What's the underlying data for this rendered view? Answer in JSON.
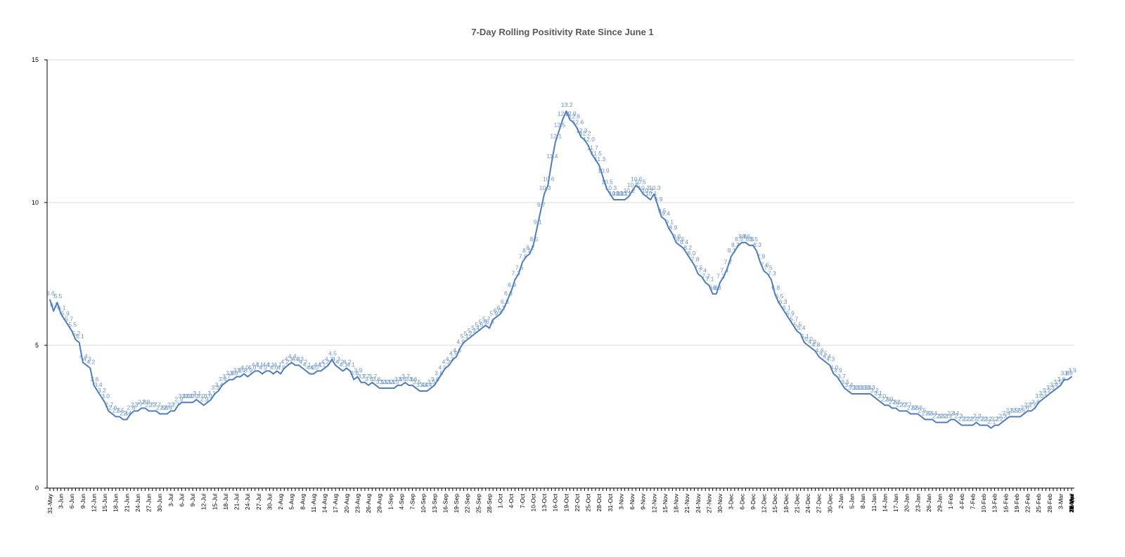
{
  "chart_data": {
    "type": "line",
    "title": "7-Day Rolling Positivity Rate Since June 1",
    "xlabel": "",
    "ylabel": "",
    "ylim": [
      0,
      15
    ],
    "y_ticks": [
      "0",
      "5",
      "10",
      "15"
    ],
    "grid": true,
    "legend": "none",
    "x_tick_labels": [
      "31-May",
      "3-Jun",
      "6-Jun",
      "9-Jun",
      "12-Jun",
      "15-Jun",
      "18-Jun",
      "21-Jun",
      "24-Jun",
      "27-Jun",
      "30-Jun",
      "3-Jul",
      "6-Jul",
      "9-Jul",
      "12-Jul",
      "15-Jul",
      "18-Jul",
      "21-Jul",
      "24-Jul",
      "27-Jul",
      "30-Jul",
      "2-Aug",
      "5-Aug",
      "8-Aug",
      "11-Aug",
      "14-Aug",
      "17-Aug",
      "20-Aug",
      "23-Aug",
      "26-Aug",
      "29-Aug",
      "1-Sep",
      "4-Sep",
      "7-Sep",
      "10-Sep",
      "13-Sep",
      "16-Sep",
      "19-Sep",
      "22-Sep",
      "25-Sep",
      "28-Sep",
      "1-Oct",
      "4-Oct",
      "7-Oct",
      "10-Oct",
      "13-Oct",
      "16-Oct",
      "19-Oct",
      "22-Oct",
      "25-Oct",
      "28-Oct",
      "31-Oct",
      "3-Nov",
      "6-Nov",
      "9-Nov",
      "12-Nov",
      "15-Nov",
      "18-Nov",
      "21-Nov",
      "24-Nov",
      "27-Nov",
      "30-Nov",
      "3-Dec",
      "6-Dec",
      "9-Dec",
      "12-Dec",
      "15-Dec",
      "18-Dec",
      "21-Dec",
      "24-Dec",
      "27-Dec",
      "30-Dec",
      "2-Jan",
      "5-Jan",
      "8-Jan",
      "11-Jan",
      "14-Jan",
      "17-Jan",
      "20-Jan",
      "23-Jan",
      "26-Jan",
      "29-Jan",
      "1-Feb",
      "4-Feb",
      "7-Feb",
      "10-Feb",
      "13-Feb",
      "16-Feb",
      "19-Feb",
      "22-Feb",
      "25-Feb",
      "28-Feb",
      "3-Mar",
      "6-Mar",
      "9-Mar",
      "12-Mar",
      "15-Mar",
      "18-Mar",
      "21-Mar",
      "24-Mar",
      "27-Mar",
      "30-Mar",
      "2-Apr",
      "5-April"
    ],
    "series_color": "#4f7dbd",
    "series": [
      {
        "values": [
          6.6,
          6.2,
          6.5,
          6.1,
          5.9,
          5.7,
          5.5,
          5.2,
          5.1,
          4.4,
          4.3,
          4.2,
          3.6,
          3.4,
          3.2,
          3.0,
          2.7,
          2.6,
          2.5,
          2.5,
          2.4,
          2.4,
          2.6,
          2.7,
          2.7,
          2.8,
          2.8,
          2.7,
          2.7,
          2.7,
          2.6,
          2.6,
          2.6,
          2.7,
          2.7,
          2.9,
          3.0,
          3.0,
          3.0,
          3.0,
          3.1,
          3.0,
          2.9,
          3.0,
          3.1,
          3.3,
          3.4,
          3.6,
          3.7,
          3.8,
          3.8,
          3.9,
          3.9,
          4.0,
          3.9,
          4.0,
          4.1,
          4.1,
          4.0,
          4.1,
          4.1,
          4.0,
          4.1,
          4.0,
          4.2,
          4.3,
          4.4,
          4.3,
          4.3,
          4.2,
          4.1,
          4.0,
          4.0,
          4.1,
          4.1,
          4.2,
          4.3,
          4.5,
          4.3,
          4.2,
          4.1,
          4.2,
          4.1,
          3.8,
          3.9,
          3.7,
          3.7,
          3.6,
          3.7,
          3.6,
          3.5,
          3.5,
          3.5,
          3.5,
          3.5,
          3.6,
          3.6,
          3.7,
          3.6,
          3.6,
          3.5,
          3.4,
          3.4,
          3.4,
          3.5,
          3.6,
          3.8,
          4.0,
          4.2,
          4.3,
          4.5,
          4.6,
          4.9,
          5.1,
          5.2,
          5.3,
          5.4,
          5.5,
          5.6,
          5.7,
          5.6,
          5.9,
          6.0,
          6.1,
          6.3,
          6.6,
          6.9,
          7.3,
          7.5,
          7.9,
          8.1,
          8.2,
          8.5,
          9.1,
          9.7,
          10.3,
          10.6,
          11.4,
          12.1,
          12.5,
          12.9,
          13.2,
          12.9,
          12.8,
          12.6,
          12.3,
          12.2,
          12.0,
          11.7,
          11.5,
          11.3,
          10.9,
          10.5,
          10.3,
          10.1,
          10.1,
          10.1,
          10.1,
          10.2,
          10.4,
          10.6,
          10.5,
          10.3,
          10.2,
          10.1,
          10.3,
          9.9,
          9.5,
          9.4,
          9.1,
          8.9,
          8.6,
          8.5,
          8.4,
          8.2,
          8.0,
          7.8,
          7.5,
          7.4,
          7.2,
          7.1,
          6.8,
          6.8,
          7.2,
          7.4,
          7.7,
          8.1,
          8.3,
          8.5,
          8.6,
          8.6,
          8.5,
          8.5,
          8.3,
          7.9,
          7.6,
          7.5,
          7.3,
          6.8,
          6.5,
          6.3,
          6.1,
          5.9,
          5.7,
          5.5,
          5.4,
          5.1,
          5.0,
          4.9,
          4.8,
          4.6,
          4.5,
          4.4,
          4.3,
          4.0,
          3.9,
          3.7,
          3.5,
          3.4,
          3.3,
          3.3,
          3.3,
          3.3,
          3.3,
          3.3,
          3.2,
          3.1,
          3.0,
          2.9,
          2.9,
          2.8,
          2.8,
          2.7,
          2.7,
          2.7,
          2.6,
          2.6,
          2.6,
          2.5,
          2.4,
          2.4,
          2.4,
          2.3,
          2.3,
          2.3,
          2.3,
          2.4,
          2.4,
          2.3,
          2.2,
          2.2,
          2.2,
          2.2,
          2.3,
          2.2,
          2.2,
          2.2,
          2.1,
          2.2,
          2.2,
          2.3,
          2.4,
          2.5,
          2.5,
          2.5,
          2.5,
          2.6,
          2.7,
          2.7,
          2.8,
          3.0,
          3.1,
          3.2,
          3.3,
          3.4,
          3.5,
          3.6,
          3.8,
          3.8,
          3.9
        ]
      }
    ]
  }
}
